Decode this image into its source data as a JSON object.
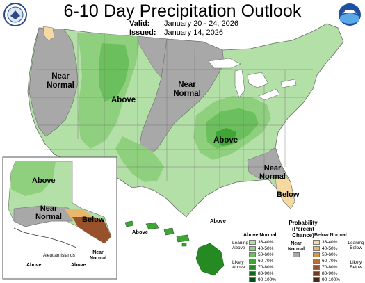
{
  "header": {
    "title": "6-10 Day Precipitation Outlook",
    "valid_label": "Valid:",
    "valid_value": "January 20 - 24, 2026",
    "issued_label": "Issued:",
    "issued_value": "January 14, 2026",
    "left_logo_icon": "department-of-commerce-seal-icon",
    "right_logo_icon": "noaa-logo-icon",
    "right_logo_text": "NOAA"
  },
  "colors": {
    "gray_near_normal": "#a8a8a8",
    "above_33_40": "#b3e0a6",
    "above_40_50": "#8fd07e",
    "above_50_60": "#6bbf5c",
    "above_60_70": "#3fa534",
    "above_70_80": "#258a22",
    "above_80_90": "#12661a",
    "above_90_100": "#084d10",
    "below_33_40": "#f5d9a0",
    "below_40_50": "#e8b66c",
    "below_50_60": "#d4964a",
    "below_60_70": "#b8703a",
    "below_70_80": "#97512b",
    "below_80_90": "#733a20",
    "below_90_100": "#4a2814"
  },
  "map_labels": {
    "west_near_normal": "Near\nNormal",
    "west_above": "Above",
    "central_near_normal": "Near\nNormal",
    "east_above": "Above",
    "se_near_normal": "Near\nNormal",
    "florida_below": "Below",
    "alaska_above": "Above",
    "alaska_near_normal": "Near\nNormal",
    "alaska_below": "Below",
    "aleutian_islands": "Aleutian Islands",
    "aleutian_above": "Above",
    "aleutian_near_normal": "Near\nNormal",
    "aleutian_above_2": "Above",
    "hawaii_above_west": "Above",
    "hawaii_above_east": "Above"
  },
  "legend": {
    "title": "Probability\n(Percent Chance)",
    "above_heading": "Above Normal",
    "below_heading": "Below Normal",
    "near_normal_label": "Near\nNormal",
    "leaning_above": "Leaning\nAbove",
    "likely_above": "Likely\nAbove",
    "leaning_below": "Leaning\nBelow",
    "likely_below": "Likely\nBelow",
    "bins": [
      "33-40%",
      "40-50%",
      "50-60%",
      "60-70%",
      "70-80%",
      "80-90%",
      "90-100%"
    ]
  }
}
